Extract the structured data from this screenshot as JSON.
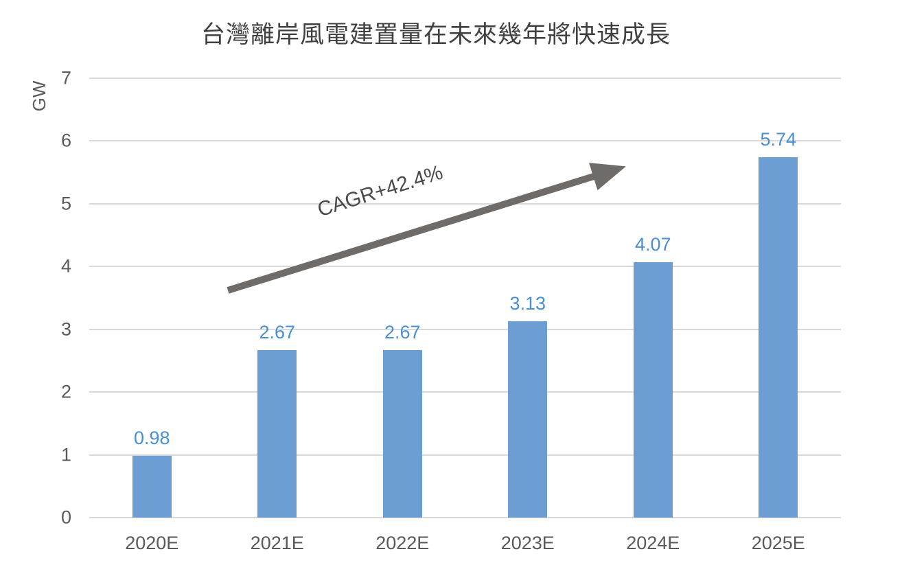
{
  "chart_data": {
    "type": "bar",
    "title": "台灣離岸風電建置量在未來幾年將快速成長",
    "categories": [
      "2020E",
      "2021E",
      "2022E",
      "2023E",
      "2024E",
      "2025E"
    ],
    "values": [
      0.98,
      2.67,
      2.67,
      3.13,
      4.07,
      5.74
    ],
    "data_labels": [
      "0.98",
      "2.67",
      "2.67",
      "3.13",
      "4.07",
      "5.74"
    ],
    "xlabel": "",
    "ylabel": "GW",
    "ylim": [
      0,
      7
    ],
    "yticks": [
      0,
      1,
      2,
      3,
      4,
      5,
      6,
      7
    ],
    "grid": true,
    "legend_position": "none",
    "annotation": {
      "text": "CAGR+42.4%",
      "shape": "arrow-up-right"
    },
    "colors": {
      "background": "#FFFFFF",
      "bar": "#6C9DD3",
      "data_label": "#4A8FD3",
      "axis_text": "#595959",
      "title_text": "#404040",
      "gridline": "#D9D9D9",
      "arrow": "#6F6B68",
      "annotation_text": "#4A4A4A"
    }
  }
}
